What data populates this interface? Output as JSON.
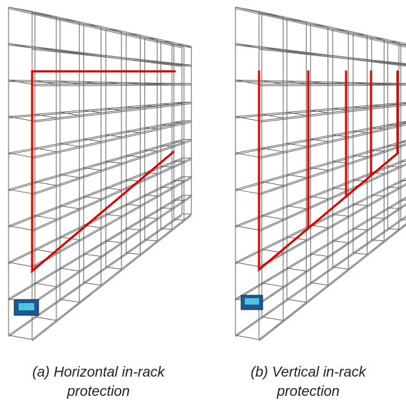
{
  "panels": [
    {
      "caption": [
        "(a) Horizontal in-rack",
        "protection"
      ]
    },
    {
      "caption": [
        "(b) Vertical in-rack",
        "protection"
      ]
    }
  ]
}
